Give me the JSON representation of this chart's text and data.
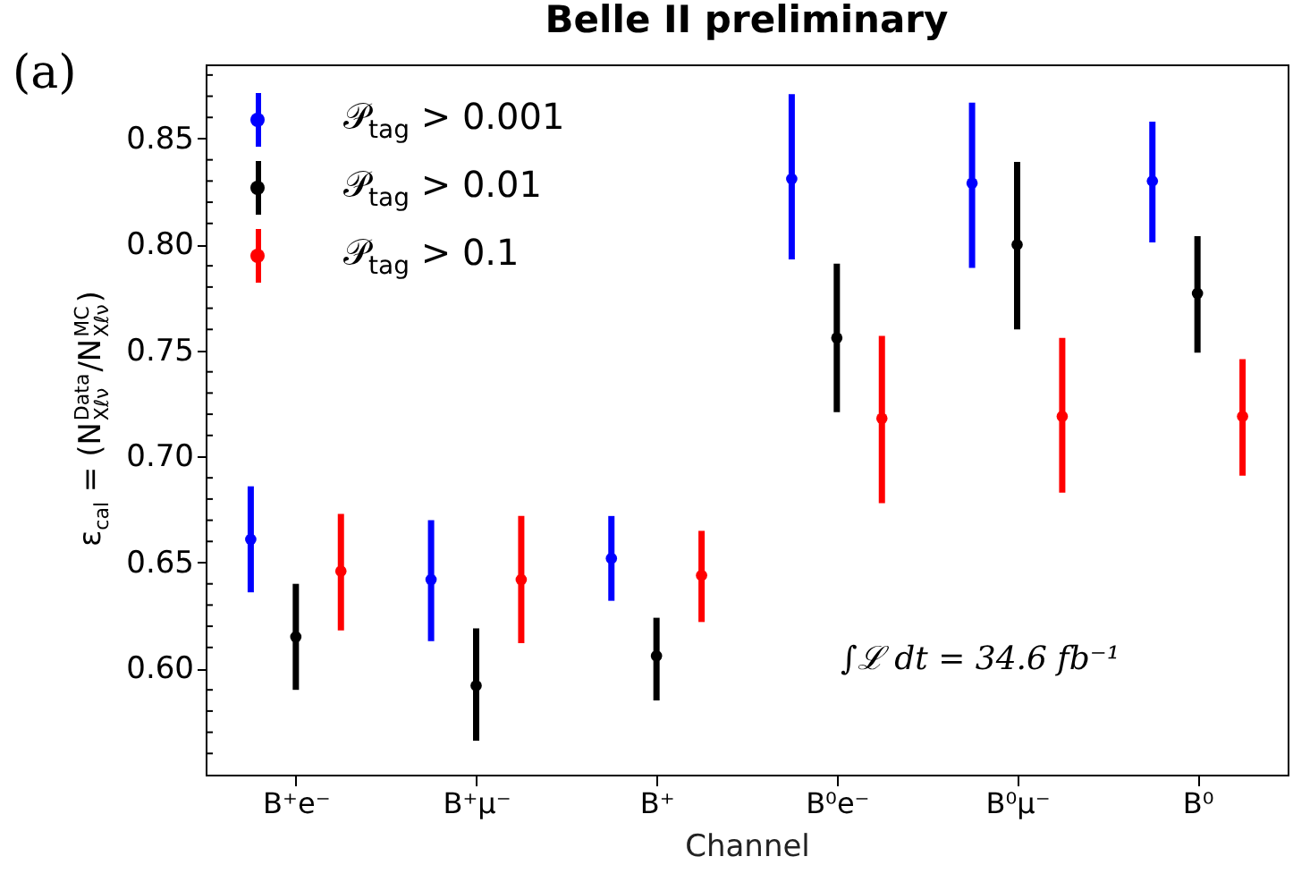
{
  "chart_data": {
    "type": "scatter",
    "title": "Belle II preliminary",
    "xlabel": "Channel",
    "ylabel": "ε$_{cal}$ = (N$^{Data}$$_{Xℓν}$/N$^{MC}$$_{Xℓν}$)",
    "annotations": [
      "(a)",
      "∫ℒ dt = 34.6 fb⁻¹"
    ],
    "categories": [
      "B⁺e⁻",
      "B⁺μ⁻",
      "B⁺",
      "B⁰e⁻",
      "B⁰μ⁻",
      "B⁰"
    ],
    "series": [
      {
        "name": "𝒫$_{tag}$ > 0.001",
        "color": "#0000ff",
        "values": [
          0.661,
          0.642,
          0.652,
          0.831,
          0.829,
          0.83
        ],
        "errors": [
          [
            0.636,
            0.686
          ],
          [
            0.613,
            0.67
          ],
          [
            0.632,
            0.672
          ],
          [
            0.793,
            0.871
          ],
          [
            0.789,
            0.867
          ],
          [
            0.801,
            0.858
          ]
        ]
      },
      {
        "name": "𝒫$_{tag}$ > 0.01",
        "color": "#000000",
        "values": [
          0.615,
          0.592,
          0.606,
          0.756,
          0.8,
          0.777
        ],
        "errors": [
          [
            0.59,
            0.64
          ],
          [
            0.566,
            0.619
          ],
          [
            0.585,
            0.624
          ],
          [
            0.721,
            0.791
          ],
          [
            0.76,
            0.839
          ],
          [
            0.749,
            0.804
          ]
        ]
      },
      {
        "name": "𝒫$_{tag}$ > 0.1",
        "color": "#ff0000",
        "values": [
          0.646,
          0.642,
          0.644,
          0.718,
          0.719,
          0.719
        ],
        "errors": [
          [
            0.618,
            0.673
          ],
          [
            0.612,
            0.672
          ],
          [
            0.622,
            0.665
          ],
          [
            0.678,
            0.757
          ],
          [
            0.683,
            0.756
          ],
          [
            0.691,
            0.746
          ]
        ]
      }
    ],
    "ylim": [
      0.55,
      0.885
    ],
    "yticks": [
      {
        "value": 0.56,
        "label": null
      },
      {
        "value": 0.57,
        "label": null
      },
      {
        "value": 0.58,
        "label": null
      },
      {
        "value": 0.59,
        "label": null
      },
      {
        "value": 0.6,
        "label": "0.60"
      },
      {
        "value": 0.61,
        "label": null
      },
      {
        "value": 0.62,
        "label": null
      },
      {
        "value": 0.63,
        "label": null
      },
      {
        "value": 0.64,
        "label": null
      },
      {
        "value": 0.65,
        "label": "0.65"
      },
      {
        "value": 0.66,
        "label": null
      },
      {
        "value": 0.67,
        "label": null
      },
      {
        "value": 0.68,
        "label": null
      },
      {
        "value": 0.69,
        "label": null
      },
      {
        "value": 0.7,
        "label": "0.70"
      },
      {
        "value": 0.71,
        "label": null
      },
      {
        "value": 0.72,
        "label": null
      },
      {
        "value": 0.73,
        "label": null
      },
      {
        "value": 0.74,
        "label": null
      },
      {
        "value": 0.75,
        "label": "0.75"
      },
      {
        "value": 0.76,
        "label": null
      },
      {
        "value": 0.77,
        "label": null
      },
      {
        "value": 0.78,
        "label": null
      },
      {
        "value": 0.79,
        "label": null
      },
      {
        "value": 0.8,
        "label": "0.80"
      },
      {
        "value": 0.81,
        "label": null
      },
      {
        "value": 0.82,
        "label": null
      },
      {
        "value": 0.83,
        "label": null
      },
      {
        "value": 0.84,
        "label": null
      },
      {
        "value": 0.85,
        "label": "0.85"
      },
      {
        "value": 0.86,
        "label": null
      },
      {
        "value": 0.87,
        "label": null
      },
      {
        "value": 0.88,
        "label": null
      }
    ],
    "grid": false,
    "legend": "top left",
    "marker": "circle"
  }
}
